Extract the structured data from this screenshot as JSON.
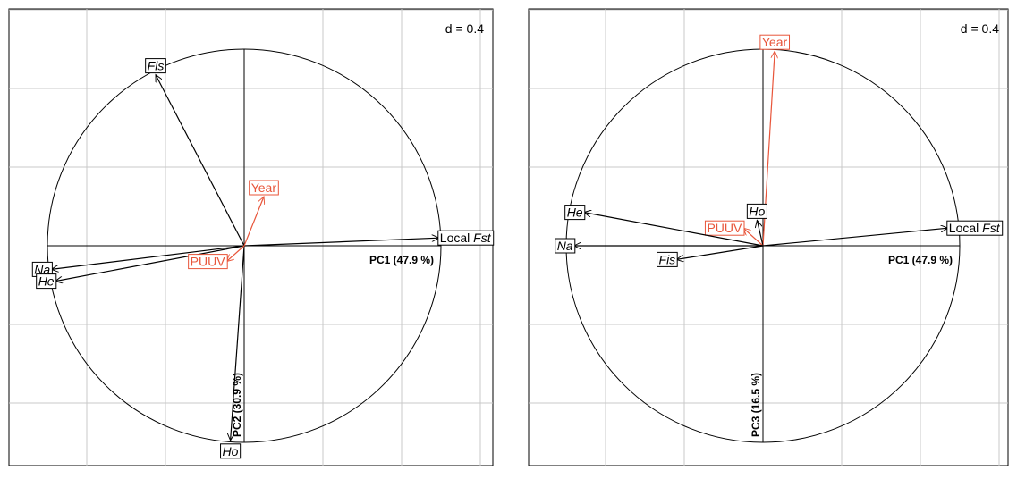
{
  "colors": {
    "variable": "#000000",
    "supplementary": "#e8553a",
    "grid": "#c8c8c8"
  },
  "chart_data": [
    {
      "type": "scatter",
      "subtype": "correlation-circle",
      "d_label": "d = 0.4",
      "grid": true,
      "xlim": [
        -1.0,
        1.0
      ],
      "ylim": [
        -1.0,
        1.0
      ],
      "x_axis_label": "PC1 (47.9 %)",
      "y_axis_label": "PC2 (30.9 %)",
      "arrows": [
        {
          "label": "Fis",
          "italic": "Fis",
          "x": -0.45,
          "y": 0.87,
          "supplementary": false
        },
        {
          "label": "Local Fst",
          "prefix": "Local ",
          "italic": "Fst",
          "x": 0.99,
          "y": 0.04,
          "supplementary": false
        },
        {
          "label": "Na",
          "italic": "Na",
          "x": -0.98,
          "y": -0.12,
          "supplementary": false
        },
        {
          "label": "He",
          "italic": "He",
          "x": -0.96,
          "y": -0.18,
          "supplementary": false
        },
        {
          "label": "Ho",
          "italic": "Ho",
          "x": -0.07,
          "y": -0.99,
          "supplementary": false
        },
        {
          "label": "Year",
          "x": 0.1,
          "y": 0.25,
          "supplementary": true
        },
        {
          "label": "PUUV",
          "x": -0.09,
          "y": -0.08,
          "supplementary": true
        }
      ]
    },
    {
      "type": "scatter",
      "subtype": "correlation-circle",
      "d_label": "d = 0.4",
      "grid": true,
      "xlim": [
        -1.0,
        1.0
      ],
      "ylim": [
        -1.0,
        1.0
      ],
      "x_axis_label": "PC1 (47.9 %)",
      "y_axis_label": "PC3 (16.5 %)",
      "arrows": [
        {
          "label": "Year",
          "x": 0.06,
          "y": 0.99,
          "supplementary": true
        },
        {
          "label": "Ho",
          "italic": "Ho",
          "x": -0.03,
          "y": 0.13,
          "supplementary": false
        },
        {
          "label": "PUUV",
          "x": -0.1,
          "y": 0.09,
          "supplementary": true
        },
        {
          "label": "He",
          "italic": "He",
          "x": -0.91,
          "y": 0.17,
          "supplementary": false
        },
        {
          "label": "Na",
          "italic": "Na",
          "x": -0.96,
          "y": 0.0,
          "supplementary": false
        },
        {
          "label": "Fis",
          "italic": "Fis",
          "x": -0.44,
          "y": -0.07,
          "supplementary": false
        },
        {
          "label": "Local Fst",
          "prefix": "Local ",
          "italic": "Fst",
          "x": 0.94,
          "y": 0.09,
          "supplementary": false
        }
      ]
    }
  ]
}
